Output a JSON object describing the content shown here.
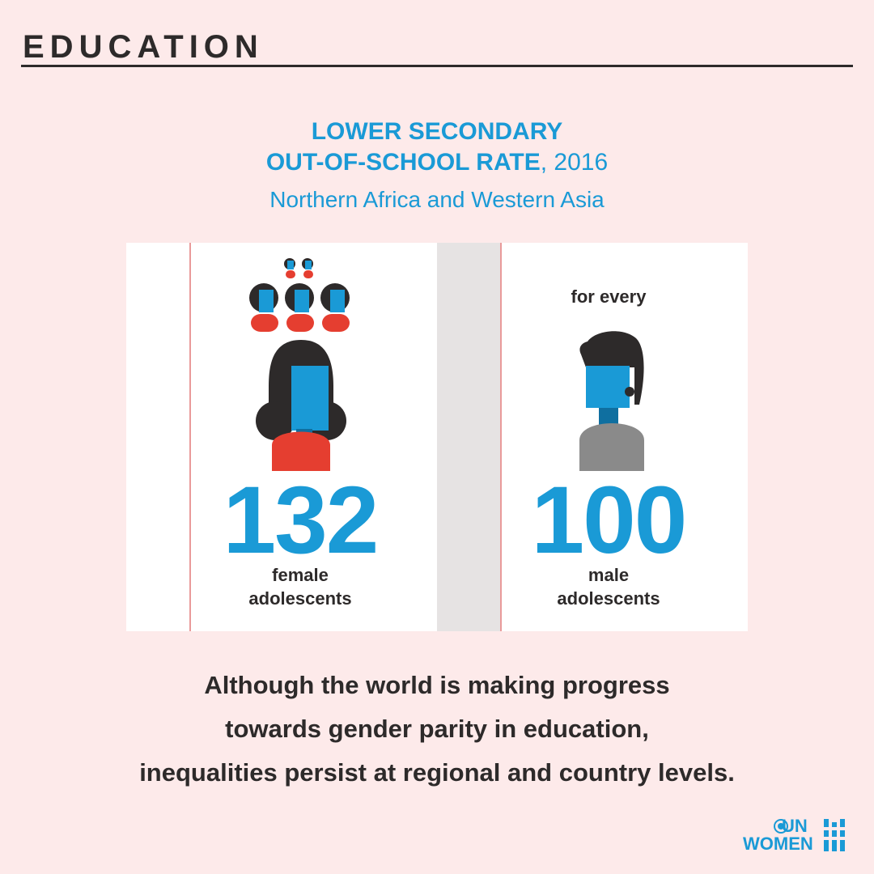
{
  "header": {
    "title": "EDUCATION"
  },
  "chart_title": {
    "line1": "LOWER SECONDARY",
    "line2_bold": "OUT-OF-SCHOOL RATE",
    "line2_rest": ", 2016",
    "subtitle": "Northern Africa and Western Asia"
  },
  "comparison": {
    "female_value": "132",
    "female_label_1": "female",
    "female_label_2": "adolescents",
    "connector": "for every",
    "male_value": "100",
    "male_label_1": "male",
    "male_label_2": "adolescents"
  },
  "footer": {
    "line1": "Although the world is making progress",
    "line2": "towards gender parity in education,",
    "line3": "inequalities persist at regional and country levels."
  },
  "logo": {
    "line1": "UN",
    "line2": "WOMEN"
  },
  "colors": {
    "background": "#fdeaea",
    "accent_blue": "#1a9ad6",
    "female_red": "#e53e30",
    "male_gray": "#8a8a8a",
    "text_dark": "#2d2a2a"
  }
}
